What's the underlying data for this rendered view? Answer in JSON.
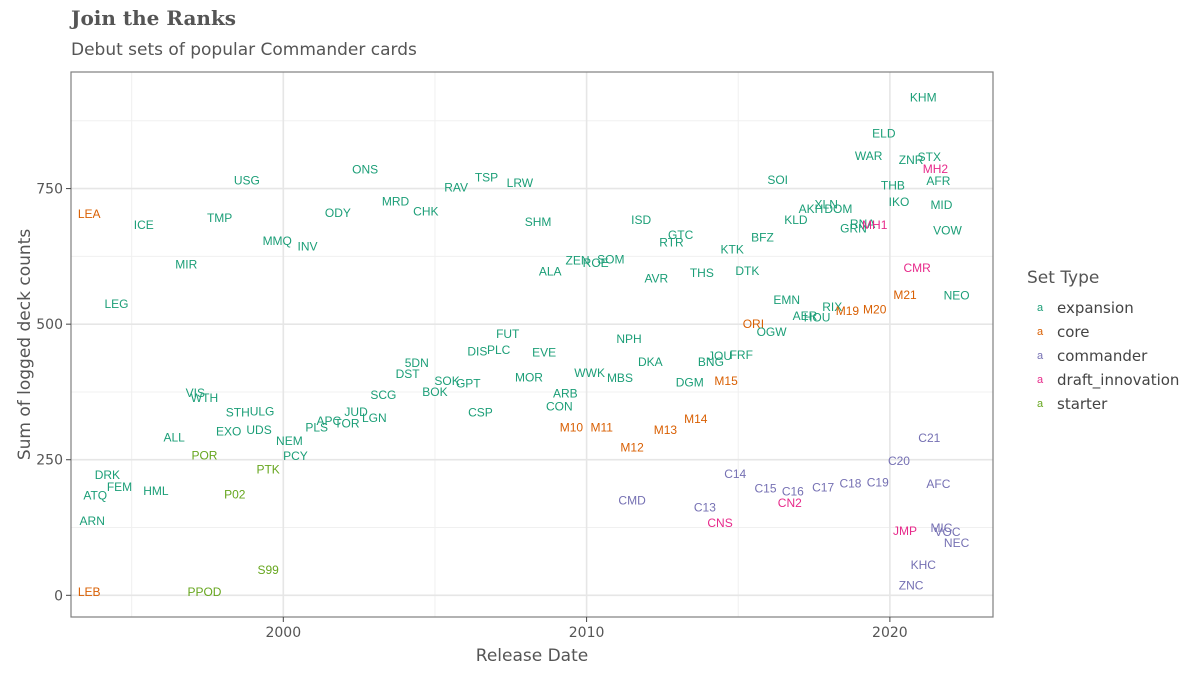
{
  "title": "Join the Ranks",
  "subtitle": "Debut sets of popular Commander cards",
  "chart_data": {
    "type": "scatter",
    "xlabel": "Release Date",
    "ylabel": "Sum of logged deck counts",
    "xlim": [
      1993.0,
      2023.4
    ],
    "ylim": [
      -40,
      965
    ],
    "xticks": [
      2000,
      2010,
      2020
    ],
    "xtick_labels": [
      "2000",
      "2010",
      "2020"
    ],
    "yticks": [
      0,
      250,
      500,
      750
    ],
    "ytick_labels": [
      "0",
      "250",
      "500",
      "750"
    ],
    "grid": true,
    "legend": {
      "title": "Set Type",
      "position": "right",
      "entries": [
        {
          "key": "expansion",
          "label": "expansion",
          "color": "#1B9E77"
        },
        {
          "key": "core",
          "label": "core",
          "color": "#D95F02"
        },
        {
          "key": "commander",
          "label": "commander",
          "color": "#7570B3"
        },
        {
          "key": "draft_innovation",
          "label": "draft_innovation",
          "color": "#E7298A"
        },
        {
          "key": "starter",
          "label": "starter",
          "color": "#66A61E"
        }
      ]
    },
    "points": [
      {
        "label": "LEA",
        "x": 1993.6,
        "y": 703,
        "type": "core"
      },
      {
        "label": "LEB",
        "x": 1993.6,
        "y": 6,
        "type": "core"
      },
      {
        "label": "ARN",
        "x": 1993.7,
        "y": 137,
        "type": "expansion"
      },
      {
        "label": "ATQ",
        "x": 1993.8,
        "y": 184,
        "type": "expansion"
      },
      {
        "label": "DRK",
        "x": 1994.2,
        "y": 222,
        "type": "expansion"
      },
      {
        "label": "FEM",
        "x": 1994.6,
        "y": 200,
        "type": "expansion"
      },
      {
        "label": "LEG",
        "x": 1994.5,
        "y": 537,
        "type": "expansion"
      },
      {
        "label": "ICE",
        "x": 1995.4,
        "y": 683,
        "type": "expansion"
      },
      {
        "label": "HML",
        "x": 1995.8,
        "y": 192,
        "type": "expansion"
      },
      {
        "label": "ALL",
        "x": 1996.4,
        "y": 291,
        "type": "expansion"
      },
      {
        "label": "MIR",
        "x": 1996.8,
        "y": 610,
        "type": "expansion"
      },
      {
        "label": "VIS",
        "x": 1997.1,
        "y": 373,
        "type": "expansion"
      },
      {
        "label": "WTH",
        "x": 1997.4,
        "y": 364,
        "type": "expansion"
      },
      {
        "label": "POR",
        "x": 1997.4,
        "y": 258,
        "type": "starter"
      },
      {
        "label": "PPOD",
        "x": 1997.4,
        "y": 6,
        "type": "starter"
      },
      {
        "label": "TMP",
        "x": 1997.9,
        "y": 696,
        "type": "expansion"
      },
      {
        "label": "EXO",
        "x": 1998.2,
        "y": 302,
        "type": "expansion"
      },
      {
        "label": "STH",
        "x": 1998.5,
        "y": 337,
        "type": "expansion"
      },
      {
        "label": "P02",
        "x": 1998.4,
        "y": 186,
        "type": "starter"
      },
      {
        "label": "USG",
        "x": 1998.8,
        "y": 765,
        "type": "expansion"
      },
      {
        "label": "UDS",
        "x": 1999.2,
        "y": 305,
        "type": "expansion"
      },
      {
        "label": "ULG",
        "x": 1999.3,
        "y": 339,
        "type": "expansion"
      },
      {
        "label": "PTK",
        "x": 1999.5,
        "y": 232,
        "type": "starter"
      },
      {
        "label": "S99",
        "x": 1999.5,
        "y": 47,
        "type": "starter"
      },
      {
        "label": "MMQ",
        "x": 1999.8,
        "y": 653,
        "type": "expansion"
      },
      {
        "label": "NEM",
        "x": 2000.2,
        "y": 285,
        "type": "expansion"
      },
      {
        "label": "PCY",
        "x": 2000.4,
        "y": 257,
        "type": "expansion"
      },
      {
        "label": "INV",
        "x": 2000.8,
        "y": 643,
        "type": "expansion"
      },
      {
        "label": "PLS",
        "x": 2001.1,
        "y": 309,
        "type": "expansion"
      },
      {
        "label": "APC",
        "x": 2001.5,
        "y": 321,
        "type": "expansion"
      },
      {
        "label": "ODY",
        "x": 2001.8,
        "y": 705,
        "type": "expansion"
      },
      {
        "label": "TOR",
        "x": 2002.1,
        "y": 317,
        "type": "expansion"
      },
      {
        "label": "JUD",
        "x": 2002.4,
        "y": 338,
        "type": "expansion"
      },
      {
        "label": "ONS",
        "x": 2002.7,
        "y": 785,
        "type": "expansion"
      },
      {
        "label": "LGN",
        "x": 2003.0,
        "y": 327,
        "type": "expansion"
      },
      {
        "label": "SCG",
        "x": 2003.3,
        "y": 369,
        "type": "expansion"
      },
      {
        "label": "MRD",
        "x": 2003.7,
        "y": 726,
        "type": "expansion"
      },
      {
        "label": "DST",
        "x": 2004.1,
        "y": 408,
        "type": "expansion"
      },
      {
        "label": "5DN",
        "x": 2004.4,
        "y": 428,
        "type": "expansion"
      },
      {
        "label": "CHK",
        "x": 2004.7,
        "y": 708,
        "type": "expansion"
      },
      {
        "label": "BOK",
        "x": 2005.0,
        "y": 375,
        "type": "expansion"
      },
      {
        "label": "SOK",
        "x": 2005.4,
        "y": 395,
        "type": "expansion"
      },
      {
        "label": "RAV",
        "x": 2005.7,
        "y": 752,
        "type": "expansion"
      },
      {
        "label": "GPT",
        "x": 2006.1,
        "y": 391,
        "type": "expansion"
      },
      {
        "label": "DIS",
        "x": 2006.4,
        "y": 450,
        "type": "expansion"
      },
      {
        "label": "CSP",
        "x": 2006.5,
        "y": 337,
        "type": "expansion"
      },
      {
        "label": "TSP",
        "x": 2006.7,
        "y": 770,
        "type": "expansion"
      },
      {
        "label": "PLC",
        "x": 2007.1,
        "y": 452,
        "type": "expansion"
      },
      {
        "label": "FUT",
        "x": 2007.4,
        "y": 482,
        "type": "expansion"
      },
      {
        "label": "LRW",
        "x": 2007.8,
        "y": 760,
        "type": "expansion"
      },
      {
        "label": "MOR",
        "x": 2008.1,
        "y": 402,
        "type": "expansion"
      },
      {
        "label": "SHM",
        "x": 2008.4,
        "y": 688,
        "type": "expansion"
      },
      {
        "label": "EVE",
        "x": 2008.6,
        "y": 448,
        "type": "expansion"
      },
      {
        "label": "ALA",
        "x": 2008.8,
        "y": 597,
        "type": "expansion"
      },
      {
        "label": "CON",
        "x": 2009.1,
        "y": 348,
        "type": "expansion"
      },
      {
        "label": "ARB",
        "x": 2009.3,
        "y": 372,
        "type": "expansion"
      },
      {
        "label": "M10",
        "x": 2009.5,
        "y": 309,
        "type": "core"
      },
      {
        "label": "ZEN",
        "x": 2009.7,
        "y": 617,
        "type": "expansion"
      },
      {
        "label": "WWK",
        "x": 2010.1,
        "y": 410,
        "type": "expansion"
      },
      {
        "label": "ROE",
        "x": 2010.3,
        "y": 613,
        "type": "expansion"
      },
      {
        "label": "M11",
        "x": 2010.5,
        "y": 309,
        "type": "core"
      },
      {
        "label": "SOM",
        "x": 2010.8,
        "y": 619,
        "type": "expansion"
      },
      {
        "label": "MBS",
        "x": 2011.1,
        "y": 401,
        "type": "expansion"
      },
      {
        "label": "NPH",
        "x": 2011.4,
        "y": 473,
        "type": "expansion"
      },
      {
        "label": "M12",
        "x": 2011.5,
        "y": 273,
        "type": "core"
      },
      {
        "label": "CMD",
        "x": 2011.5,
        "y": 175,
        "type": "commander"
      },
      {
        "label": "ISD",
        "x": 2011.8,
        "y": 692,
        "type": "expansion"
      },
      {
        "label": "DKA",
        "x": 2012.1,
        "y": 430,
        "type": "expansion"
      },
      {
        "label": "AVR",
        "x": 2012.3,
        "y": 584,
        "type": "expansion"
      },
      {
        "label": "M13",
        "x": 2012.6,
        "y": 305,
        "type": "core"
      },
      {
        "label": "RTR",
        "x": 2012.8,
        "y": 651,
        "type": "expansion"
      },
      {
        "label": "GTC",
        "x": 2013.1,
        "y": 664,
        "type": "expansion"
      },
      {
        "label": "DGM",
        "x": 2013.4,
        "y": 392,
        "type": "expansion"
      },
      {
        "label": "M14",
        "x": 2013.6,
        "y": 325,
        "type": "core"
      },
      {
        "label": "THS",
        "x": 2013.8,
        "y": 594,
        "type": "expansion"
      },
      {
        "label": "C13",
        "x": 2013.9,
        "y": 162,
        "type": "commander"
      },
      {
        "label": "BNG",
        "x": 2014.1,
        "y": 430,
        "type": "expansion"
      },
      {
        "label": "JOU",
        "x": 2014.4,
        "y": 441,
        "type": "expansion"
      },
      {
        "label": "CNS",
        "x": 2014.4,
        "y": 133,
        "type": "draft_innovation"
      },
      {
        "label": "M15",
        "x": 2014.6,
        "y": 395,
        "type": "core"
      },
      {
        "label": "KTK",
        "x": 2014.8,
        "y": 638,
        "type": "expansion"
      },
      {
        "label": "C14",
        "x": 2014.9,
        "y": 224,
        "type": "commander"
      },
      {
        "label": "FRF",
        "x": 2015.1,
        "y": 443,
        "type": "expansion"
      },
      {
        "label": "DTK",
        "x": 2015.3,
        "y": 598,
        "type": "expansion"
      },
      {
        "label": "ORI",
        "x": 2015.5,
        "y": 500,
        "type": "core"
      },
      {
        "label": "BFZ",
        "x": 2015.8,
        "y": 660,
        "type": "expansion"
      },
      {
        "label": "C15",
        "x": 2015.9,
        "y": 197,
        "type": "commander"
      },
      {
        "label": "OGW",
        "x": 2016.1,
        "y": 486,
        "type": "expansion"
      },
      {
        "label": "SOI",
        "x": 2016.3,
        "y": 766,
        "type": "expansion"
      },
      {
        "label": "EMN",
        "x": 2016.6,
        "y": 545,
        "type": "expansion"
      },
      {
        "label": "CN2",
        "x": 2016.7,
        "y": 170,
        "type": "draft_innovation"
      },
      {
        "label": "C16",
        "x": 2016.8,
        "y": 191,
        "type": "commander"
      },
      {
        "label": "KLD",
        "x": 2016.9,
        "y": 692,
        "type": "expansion"
      },
      {
        "label": "AER",
        "x": 2017.2,
        "y": 515,
        "type": "expansion"
      },
      {
        "label": "AKH",
        "x": 2017.4,
        "y": 712,
        "type": "expansion"
      },
      {
        "label": "HOU",
        "x": 2017.6,
        "y": 512,
        "type": "expansion"
      },
      {
        "label": "C17",
        "x": 2017.8,
        "y": 199,
        "type": "commander"
      },
      {
        "label": "XLN",
        "x": 2017.9,
        "y": 721,
        "type": "expansion"
      },
      {
        "label": "RIX",
        "x": 2018.1,
        "y": 532,
        "type": "expansion"
      },
      {
        "label": "DOM",
        "x": 2018.3,
        "y": 712,
        "type": "expansion"
      },
      {
        "label": "M19",
        "x": 2018.6,
        "y": 524,
        "type": "core"
      },
      {
        "label": "C18",
        "x": 2018.7,
        "y": 206,
        "type": "commander"
      },
      {
        "label": "GRN",
        "x": 2018.8,
        "y": 676,
        "type": "expansion"
      },
      {
        "label": "RNA",
        "x": 2019.1,
        "y": 685,
        "type": "expansion"
      },
      {
        "label": "WAR",
        "x": 2019.3,
        "y": 810,
        "type": "expansion"
      },
      {
        "label": "MH1",
        "x": 2019.5,
        "y": 683,
        "type": "draft_innovation"
      },
      {
        "label": "M20",
        "x": 2019.5,
        "y": 527,
        "type": "core"
      },
      {
        "label": "C19",
        "x": 2019.6,
        "y": 208,
        "type": "commander"
      },
      {
        "label": "ELD",
        "x": 2019.8,
        "y": 852,
        "type": "expansion"
      },
      {
        "label": "THB",
        "x": 2020.1,
        "y": 756,
        "type": "expansion"
      },
      {
        "label": "IKO",
        "x": 2020.3,
        "y": 725,
        "type": "expansion"
      },
      {
        "label": "C20",
        "x": 2020.3,
        "y": 248,
        "type": "commander"
      },
      {
        "label": "M21",
        "x": 2020.5,
        "y": 554,
        "type": "core"
      },
      {
        "label": "JMP",
        "x": 2020.5,
        "y": 119,
        "type": "draft_innovation"
      },
      {
        "label": "ZNR",
        "x": 2020.7,
        "y": 803,
        "type": "expansion"
      },
      {
        "label": "ZNC",
        "x": 2020.7,
        "y": 18,
        "type": "commander"
      },
      {
        "label": "CMR",
        "x": 2020.9,
        "y": 604,
        "type": "draft_innovation"
      },
      {
        "label": "KHM",
        "x": 2021.1,
        "y": 918,
        "type": "expansion"
      },
      {
        "label": "KHC",
        "x": 2021.1,
        "y": 56,
        "type": "commander"
      },
      {
        "label": "STX",
        "x": 2021.3,
        "y": 808,
        "type": "expansion"
      },
      {
        "label": "C21",
        "x": 2021.3,
        "y": 290,
        "type": "commander"
      },
      {
        "label": "MH2",
        "x": 2021.5,
        "y": 786,
        "type": "draft_innovation"
      },
      {
        "label": "AFR",
        "x": 2021.6,
        "y": 764,
        "type": "expansion"
      },
      {
        "label": "AFC",
        "x": 2021.6,
        "y": 205,
        "type": "commander"
      },
      {
        "label": "MID",
        "x": 2021.7,
        "y": 720,
        "type": "expansion"
      },
      {
        "label": "MIC",
        "x": 2021.7,
        "y": 124,
        "type": "commander"
      },
      {
        "label": "VOW",
        "x": 2021.9,
        "y": 673,
        "type": "expansion"
      },
      {
        "label": "VOC",
        "x": 2021.9,
        "y": 117,
        "type": "commander"
      },
      {
        "label": "NEO",
        "x": 2022.2,
        "y": 553,
        "type": "expansion"
      },
      {
        "label": "NEC",
        "x": 2022.2,
        "y": 96,
        "type": "commander"
      }
    ]
  }
}
